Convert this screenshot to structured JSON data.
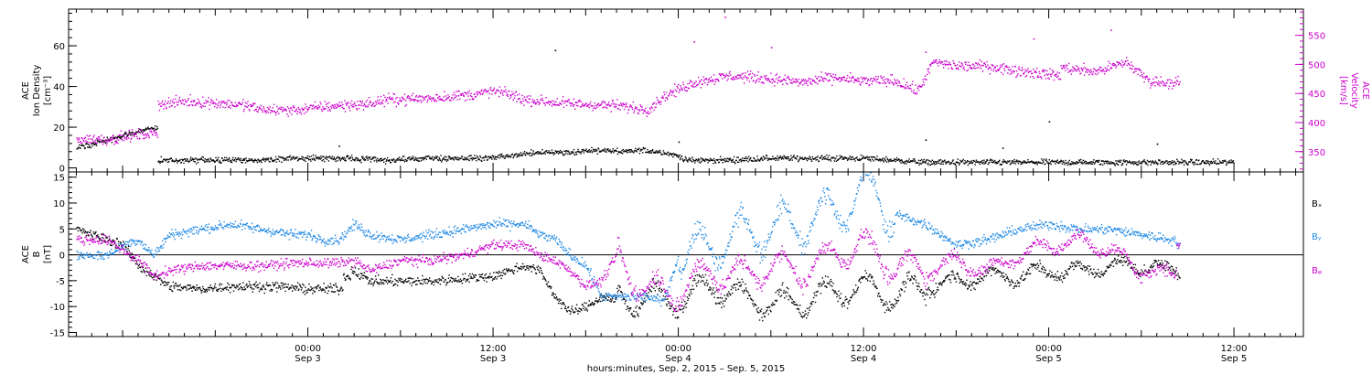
{
  "colors": {
    "black": "#000000",
    "magenta": "#cc00cc",
    "blue": "#1e88e5"
  },
  "time_axis": {
    "major_ticks": [
      {
        "time": "00:00",
        "date": "Sep 3",
        "hours": 0
      },
      {
        "time": "12:00",
        "date": "Sep 3",
        "hours": 12
      },
      {
        "time": "00:00",
        "date": "Sep 4",
        "hours": 24
      },
      {
        "time": "12:00",
        "date": "Sep 4",
        "hours": 36
      },
      {
        "time": "00:00",
        "date": "Sep 5",
        "hours": 48
      },
      {
        "time": "12:00",
        "date": "Sep 5",
        "hours": 60
      }
    ],
    "label": "hours:minutes, Sep.  2, 2015 – Sep.  5, 2015"
  },
  "chart_data": [
    {
      "type": "scatter",
      "panel": "top",
      "ylabel_left": [
        "ACE",
        "Ion Density",
        "[cm⁻³]"
      ],
      "ylabel_right": [
        "ACE",
        "Velocity",
        "[km/s]"
      ],
      "ylim_left": [
        -2,
        78
      ],
      "left_ticks": [
        "0",
        "20",
        "40",
        "60"
      ],
      "ylim_right": [
        315,
        595
      ],
      "right_ticks": [
        "350",
        "400",
        "450",
        "500",
        "550"
      ],
      "x_unit": "hours since Sep 3 00:00",
      "xlim": [
        -15.5,
        64.5
      ],
      "series": [
        {
          "axis": "left",
          "color": "black",
          "spread": 1.2,
          "points": [
            [
              -15,
              10
            ],
            [
              -14,
              12
            ],
            [
              -13,
              14
            ],
            [
              -12,
              16
            ],
            [
              -11,
              18
            ],
            [
              -10,
              20
            ],
            [
              -9.5,
              4
            ],
            [
              -6,
              4
            ],
            [
              -3,
              4
            ],
            [
              -1,
              5
            ],
            [
              2,
              5
            ],
            [
              5,
              4
            ],
            [
              8,
              5
            ],
            [
              11,
              5
            ],
            [
              13,
              6
            ],
            [
              15,
              8
            ],
            [
              17,
              8
            ],
            [
              19,
              9
            ],
            [
              20.5,
              8
            ],
            [
              21.5,
              9
            ],
            [
              23,
              8
            ],
            [
              24,
              6
            ],
            [
              24.5,
              4
            ],
            [
              27,
              4
            ],
            [
              30,
              5
            ],
            [
              33,
              5
            ],
            [
              36,
              5
            ],
            [
              38,
              4
            ],
            [
              40,
              3
            ],
            [
              44,
              3
            ],
            [
              48,
              3
            ],
            [
              52,
              3
            ],
            [
              56,
              3
            ],
            [
              58,
              3
            ],
            [
              60,
              3
            ]
          ],
          "bursts": [
            [
              2,
              11
            ],
            [
              16,
              58
            ],
            [
              24,
              13
            ],
            [
              40,
              14
            ],
            [
              48,
              23
            ],
            [
              45,
              10
            ],
            [
              55,
              12
            ]
          ]
        },
        {
          "axis": "right",
          "color": "magenta",
          "spread": 8,
          "points": [
            [
              -15,
              372
            ],
            [
              -13,
              372
            ],
            [
              -11,
              380
            ],
            [
              -10,
              382
            ],
            [
              -9.5,
              433
            ],
            [
              -8,
              437
            ],
            [
              -6,
              435
            ],
            [
              -4,
              430
            ],
            [
              -3,
              423
            ],
            [
              -1,
              422
            ],
            [
              1,
              428
            ],
            [
              2,
              430
            ],
            [
              4,
              433
            ],
            [
              5,
              440
            ],
            [
              8,
              443
            ],
            [
              11,
              450
            ],
            [
              12,
              455
            ],
            [
              13,
              450
            ],
            [
              14,
              440
            ],
            [
              17,
              433
            ],
            [
              20,
              430
            ],
            [
              22,
              423
            ],
            [
              23,
              445
            ],
            [
              24,
              458
            ],
            [
              25,
              470
            ],
            [
              26,
              475
            ],
            [
              27,
              480
            ],
            [
              28,
              480
            ],
            [
              30,
              476
            ],
            [
              32,
              470
            ],
            [
              34,
              478
            ],
            [
              36,
              472
            ],
            [
              38,
              473
            ],
            [
              39.5,
              455
            ],
            [
              40.5,
              505
            ],
            [
              42,
              498
            ],
            [
              44,
              498
            ],
            [
              46,
              490
            ],
            [
              47,
              487
            ],
            [
              48.5,
              482
            ],
            [
              49,
              495
            ],
            [
              51,
              488
            ],
            [
              53,
              505
            ],
            [
              54.5,
              472
            ],
            [
              55.5,
              470
            ],
            [
              56.5,
              470
            ]
          ],
          "bursts": [
            [
              27,
              582
            ],
            [
              40,
              522
            ],
            [
              52,
              560
            ],
            [
              25,
              540
            ],
            [
              47,
              545
            ],
            [
              30,
              530
            ]
          ]
        }
      ]
    },
    {
      "type": "scatter",
      "panel": "bottom",
      "ylabel_left": [
        "ACE",
        "B",
        "[nT]"
      ],
      "ylim": [
        -15.8,
        16
      ],
      "ticks": [
        "-15",
        "-10",
        "-5",
        "0",
        "5",
        "10",
        "15"
      ],
      "zero_line": true,
      "legend": [
        "Bₓ",
        "Bᵧ",
        "Bᵩ"
      ],
      "legend_placement": "right",
      "x_unit": "hours since Sep 3 00:00",
      "xlim": [
        -15.5,
        64.5
      ],
      "series": [
        {
          "color": "black",
          "spread": 0.8,
          "points": [
            [
              -15,
              5
            ],
            [
              -14,
              4
            ],
            [
              -13,
              3
            ],
            [
              -12,
              2
            ],
            [
              -11,
              -2
            ],
            [
              -10,
              -4
            ],
            [
              -9,
              -6
            ],
            [
              -7,
              -6.5
            ],
            [
              -5,
              -6
            ],
            [
              -2,
              -6
            ],
            [
              0,
              -6.5
            ],
            [
              1,
              -6.5
            ],
            [
              2,
              -6.5
            ],
            [
              2.5,
              -4
            ],
            [
              3,
              -3
            ],
            [
              4,
              -5
            ],
            [
              6,
              -5
            ],
            [
              8,
              -5
            ],
            [
              10,
              -4.5
            ],
            [
              12,
              -4
            ],
            [
              14,
              -2
            ],
            [
              15,
              -3
            ],
            [
              16,
              -8
            ],
            [
              17,
              -11
            ],
            [
              18,
              -10
            ],
            [
              19,
              -8
            ],
            [
              21,
              -9
            ],
            [
              22,
              -8
            ],
            [
              24,
              -9
            ],
            [
              26,
              -6
            ],
            [
              28,
              -8
            ],
            [
              30,
              -9.5
            ],
            [
              32,
              -9
            ],
            [
              34,
              -7
            ],
            [
              36,
              -6
            ],
            [
              38,
              -8
            ],
            [
              40,
              -6
            ],
            [
              42,
              -5
            ],
            [
              44,
              -4
            ],
            [
              46,
              -4
            ],
            [
              48,
              -3
            ],
            [
              50,
              -3
            ],
            [
              52,
              -2
            ],
            [
              54,
              -2
            ],
            [
              56,
              -3
            ],
            [
              56.5,
              -4
            ]
          ],
          "osc": [
            [
              20,
              40,
              3.5
            ],
            [
              40,
              56,
              2
            ]
          ]
        },
        {
          "color": "blue",
          "spread": 0.8,
          "points": [
            [
              -15,
              0
            ],
            [
              -14,
              0
            ],
            [
              -13,
              0
            ],
            [
              -12,
              2
            ],
            [
              -11,
              3
            ],
            [
              -10,
              0
            ],
            [
              -9,
              4
            ],
            [
              -7,
              5
            ],
            [
              -5,
              6
            ],
            [
              -3,
              5
            ],
            [
              -1,
              4
            ],
            [
              0,
              4
            ],
            [
              1,
              3
            ],
            [
              2,
              3
            ],
            [
              3,
              6
            ],
            [
              4,
              4
            ],
            [
              6,
              3
            ],
            [
              8,
              4
            ],
            [
              10,
              5
            ],
            [
              12,
              6
            ],
            [
              14,
              6
            ],
            [
              15,
              4
            ],
            [
              16,
              3
            ],
            [
              17,
              0
            ],
            [
              18,
              -2
            ],
            [
              19,
              -8
            ],
            [
              21,
              -8
            ],
            [
              22,
              -8
            ],
            [
              23,
              -9
            ],
            [
              24,
              0
            ],
            [
              26,
              2
            ],
            [
              28,
              4
            ],
            [
              30,
              5
            ],
            [
              32,
              6
            ],
            [
              34,
              8
            ],
            [
              36,
              13
            ],
            [
              37,
              11
            ],
            [
              38,
              8
            ],
            [
              40,
              6
            ],
            [
              42,
              2
            ],
            [
              44,
              3
            ],
            [
              46,
              5
            ],
            [
              48,
              6
            ],
            [
              50,
              5
            ],
            [
              52,
              5
            ],
            [
              54,
              4
            ],
            [
              56,
              3
            ],
            [
              56.5,
              2
            ]
          ],
          "osc": [
            [
              24,
              38,
              6
            ]
          ]
        },
        {
          "color": "magenta",
          "spread": 0.8,
          "points": [
            [
              -15,
              3
            ],
            [
              -14,
              3
            ],
            [
              -13,
              3
            ],
            [
              -12,
              1
            ],
            [
              -11,
              -1
            ],
            [
              -10,
              -4
            ],
            [
              -9,
              -3
            ],
            [
              -7,
              -2
            ],
            [
              -5,
              -2
            ],
            [
              -3,
              -2
            ],
            [
              -1,
              -1.5
            ],
            [
              0,
              -1.5
            ],
            [
              1,
              -1.5
            ],
            [
              2,
              -1.5
            ],
            [
              3,
              -1
            ],
            [
              4,
              -3
            ],
            [
              6,
              -1
            ],
            [
              8,
              -1
            ],
            [
              10,
              0
            ],
            [
              12,
              2
            ],
            [
              14,
              2
            ],
            [
              15,
              0
            ],
            [
              16,
              -1
            ],
            [
              17,
              -3
            ],
            [
              18,
              -6
            ],
            [
              19,
              -5
            ],
            [
              20,
              0
            ],
            [
              21,
              -4
            ],
            [
              22,
              -7
            ],
            [
              24,
              -7
            ],
            [
              26,
              -3
            ],
            [
              28,
              -4
            ],
            [
              30,
              -2
            ],
            [
              32,
              -3
            ],
            [
              34,
              0
            ],
            [
              36,
              2
            ],
            [
              38,
              -2
            ],
            [
              40,
              -3
            ],
            [
              42,
              -1
            ],
            [
              44,
              -3
            ],
            [
              46,
              0
            ],
            [
              48,
              2
            ],
            [
              50,
              3
            ],
            [
              52,
              1
            ],
            [
              54,
              -3
            ],
            [
              56,
              -4
            ],
            [
              56.5,
              2
            ]
          ],
          "osc": [
            [
              20,
              40,
              4
            ],
            [
              40,
              56,
              2
            ]
          ]
        }
      ]
    }
  ]
}
